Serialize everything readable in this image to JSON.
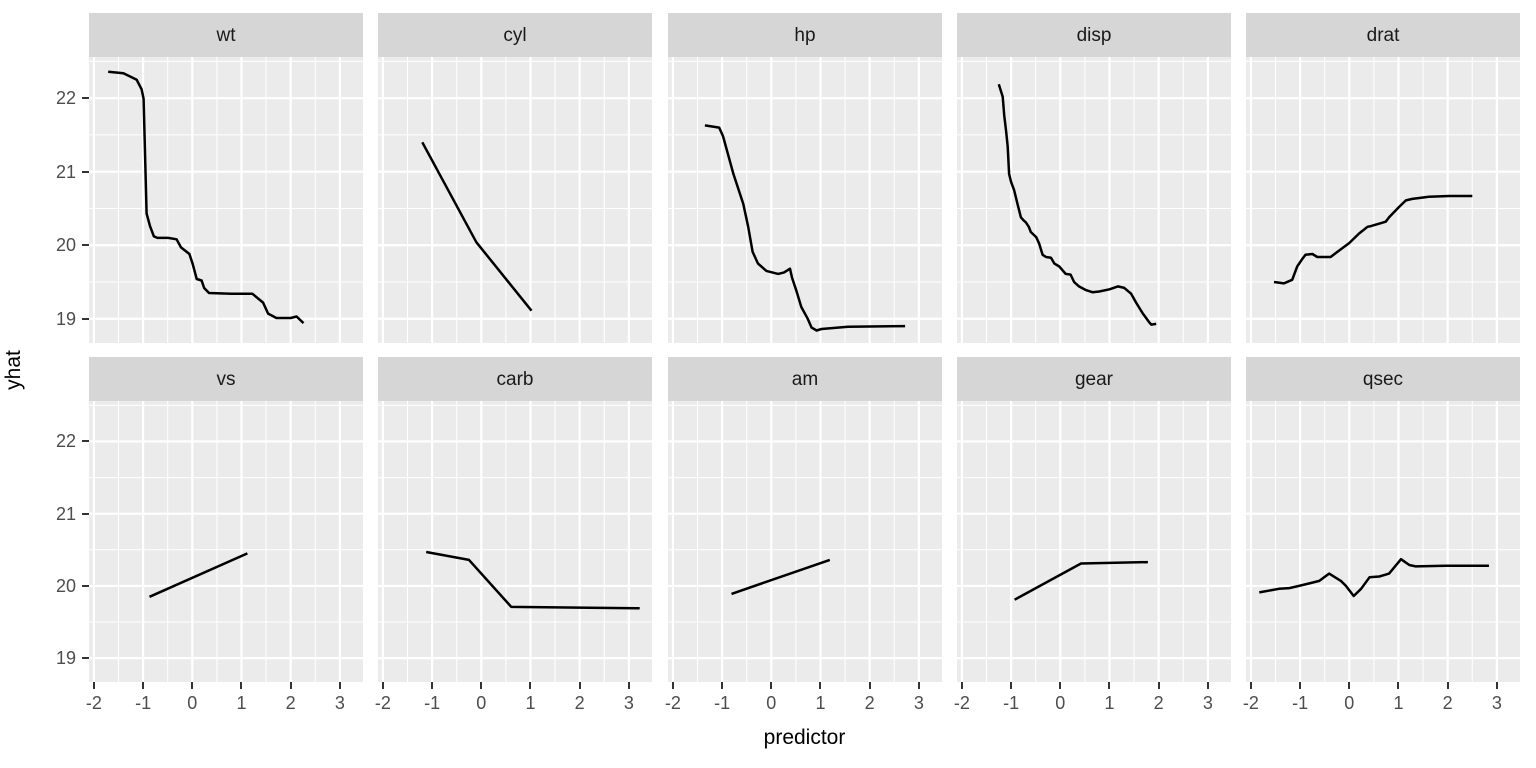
{
  "chart_data": {
    "type": "line",
    "title": "",
    "xlabel": "predictor",
    "ylabel": "yhat",
    "legend": "none",
    "grid": true,
    "x_ticks": [
      -2,
      -1,
      0,
      1,
      2,
      3
    ],
    "y_ticks": [
      19,
      20,
      21,
      22
    ],
    "x_minor": [
      -1.5,
      -0.5,
      0.5,
      1.5,
      2.5
    ],
    "y_minor": [
      19.5,
      20.5,
      21.5,
      22.5
    ],
    "xlim": [
      -2.1,
      3.47
    ],
    "ylim": [
      18.67,
      22.56
    ],
    "facets": [
      {
        "label": "wt",
        "row": 0,
        "col": 0,
        "points": [
          [
            -1.71,
            22.36
          ],
          [
            -1.4,
            22.34
          ],
          [
            -1.13,
            22.25
          ],
          [
            -1.03,
            22.12
          ],
          [
            -0.99,
            21.99
          ],
          [
            -0.93,
            20.43
          ],
          [
            -0.86,
            20.26
          ],
          [
            -0.78,
            20.12
          ],
          [
            -0.71,
            20.1
          ],
          [
            -0.49,
            20.1
          ],
          [
            -0.32,
            20.08
          ],
          [
            -0.23,
            19.97
          ],
          [
            -0.06,
            19.88
          ],
          [
            0.01,
            19.74
          ],
          [
            0.09,
            19.54
          ],
          [
            0.19,
            19.52
          ],
          [
            0.24,
            19.42
          ],
          [
            0.34,
            19.35
          ],
          [
            0.79,
            19.34
          ],
          [
            1.22,
            19.34
          ],
          [
            1.44,
            19.22
          ],
          [
            1.54,
            19.07
          ],
          [
            1.71,
            19.01
          ],
          [
            2.0,
            19.01
          ],
          [
            2.12,
            19.03
          ],
          [
            2.26,
            18.94
          ]
        ]
      },
      {
        "label": "cyl",
        "row": 0,
        "col": 1,
        "points": [
          [
            -1.2,
            21.4
          ],
          [
            -0.1,
            20.04
          ],
          [
            1.02,
            19.11
          ]
        ]
      },
      {
        "label": "hp",
        "row": 0,
        "col": 2,
        "points": [
          [
            -1.35,
            21.63
          ],
          [
            -1.06,
            21.6
          ],
          [
            -0.98,
            21.48
          ],
          [
            -0.77,
            20.97
          ],
          [
            -0.57,
            20.56
          ],
          [
            -0.47,
            20.25
          ],
          [
            -0.38,
            19.91
          ],
          [
            -0.27,
            19.75
          ],
          [
            -0.1,
            19.65
          ],
          [
            0.14,
            19.61
          ],
          [
            0.26,
            19.63
          ],
          [
            0.38,
            19.68
          ],
          [
            0.42,
            19.56
          ],
          [
            0.51,
            19.38
          ],
          [
            0.61,
            19.16
          ],
          [
            0.74,
            19.0
          ],
          [
            0.82,
            18.88
          ],
          [
            0.92,
            18.84
          ],
          [
            1.02,
            18.86
          ],
          [
            1.56,
            18.89
          ],
          [
            2.72,
            18.9
          ]
        ]
      },
      {
        "label": "disp",
        "row": 0,
        "col": 3,
        "points": [
          [
            -1.25,
            22.19
          ],
          [
            -1.17,
            22.02
          ],
          [
            -1.14,
            21.77
          ],
          [
            -1.1,
            21.54
          ],
          [
            -1.07,
            21.34
          ],
          [
            -1.04,
            20.97
          ],
          [
            -1.0,
            20.86
          ],
          [
            -0.94,
            20.75
          ],
          [
            -0.87,
            20.56
          ],
          [
            -0.8,
            20.38
          ],
          [
            -0.75,
            20.34
          ],
          [
            -0.7,
            20.31
          ],
          [
            -0.64,
            20.25
          ],
          [
            -0.6,
            20.18
          ],
          [
            -0.49,
            20.11
          ],
          [
            -0.43,
            20.02
          ],
          [
            -0.36,
            19.87
          ],
          [
            -0.29,
            19.84
          ],
          [
            -0.19,
            19.83
          ],
          [
            -0.12,
            19.75
          ],
          [
            -0.02,
            19.71
          ],
          [
            0.11,
            19.61
          ],
          [
            0.21,
            19.6
          ],
          [
            0.28,
            19.5
          ],
          [
            0.38,
            19.44
          ],
          [
            0.52,
            19.39
          ],
          [
            0.66,
            19.36
          ],
          [
            0.79,
            19.37
          ],
          [
            1.0,
            19.4
          ],
          [
            1.17,
            19.44
          ],
          [
            1.3,
            19.42
          ],
          [
            1.44,
            19.34
          ],
          [
            1.54,
            19.22
          ],
          [
            1.68,
            19.07
          ],
          [
            1.81,
            18.95
          ],
          [
            1.85,
            18.92
          ],
          [
            1.95,
            18.93
          ]
        ]
      },
      {
        "label": "drat",
        "row": 0,
        "col": 4,
        "points": [
          [
            -1.53,
            19.5
          ],
          [
            -1.33,
            19.48
          ],
          [
            -1.16,
            19.53
          ],
          [
            -1.06,
            19.71
          ],
          [
            -0.97,
            19.8
          ],
          [
            -0.89,
            19.87
          ],
          [
            -0.75,
            19.88
          ],
          [
            -0.65,
            19.84
          ],
          [
            -0.38,
            19.84
          ],
          [
            -0.24,
            19.91
          ],
          [
            0.0,
            20.03
          ],
          [
            0.2,
            20.16
          ],
          [
            0.37,
            20.25
          ],
          [
            0.44,
            20.26
          ],
          [
            0.64,
            20.3
          ],
          [
            0.74,
            20.32
          ],
          [
            0.81,
            20.38
          ],
          [
            1.01,
            20.52
          ],
          [
            1.15,
            20.61
          ],
          [
            1.28,
            20.63
          ],
          [
            1.62,
            20.66
          ],
          [
            2.03,
            20.67
          ],
          [
            2.5,
            20.67
          ]
        ]
      },
      {
        "label": "vs",
        "row": 1,
        "col": 0,
        "points": [
          [
            -0.87,
            19.85
          ],
          [
            1.12,
            20.45
          ]
        ]
      },
      {
        "label": "carb",
        "row": 1,
        "col": 1,
        "points": [
          [
            -1.12,
            20.47
          ],
          [
            -0.25,
            20.36
          ],
          [
            0.61,
            19.71
          ],
          [
            1.97,
            19.7
          ],
          [
            3.22,
            19.69
          ]
        ]
      },
      {
        "label": "am",
        "row": 1,
        "col": 2,
        "points": [
          [
            -0.81,
            19.89
          ],
          [
            1.19,
            20.36
          ]
        ]
      },
      {
        "label": "gear",
        "row": 1,
        "col": 3,
        "points": [
          [
            -0.93,
            19.81
          ],
          [
            0.42,
            20.31
          ],
          [
            1.78,
            20.33
          ]
        ]
      },
      {
        "label": "qsec",
        "row": 1,
        "col": 4,
        "points": [
          [
            -1.83,
            19.91
          ],
          [
            -1.43,
            19.96
          ],
          [
            -1.22,
            19.97
          ],
          [
            -1.02,
            20.0
          ],
          [
            -0.78,
            20.04
          ],
          [
            -0.61,
            20.07
          ],
          [
            -0.41,
            20.17
          ],
          [
            -0.17,
            20.07
          ],
          [
            -0.07,
            20.0
          ],
          [
            0.09,
            19.86
          ],
          [
            0.24,
            19.96
          ],
          [
            0.41,
            20.12
          ],
          [
            0.61,
            20.13
          ],
          [
            0.71,
            20.15
          ],
          [
            0.81,
            20.17
          ],
          [
            1.05,
            20.37
          ],
          [
            1.22,
            20.29
          ],
          [
            1.35,
            20.27
          ],
          [
            1.96,
            20.28
          ],
          [
            2.84,
            20.28
          ]
        ]
      }
    ]
  },
  "colors": {
    "line": "#000000",
    "panel_bg": "#EBEBEB",
    "strip_bg": "#D6D6D6",
    "grid": "#FFFFFF",
    "axis_text": "#4D4D4D",
    "strip_text": "#1A1A1A",
    "tick_mark": "#333333"
  }
}
